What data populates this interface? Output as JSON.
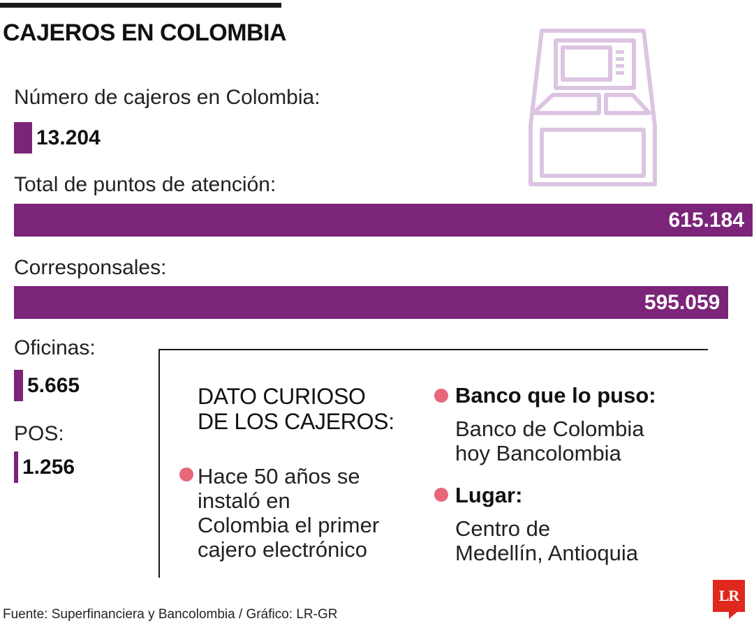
{
  "title": "CAJEROS EN COLOMBIA",
  "colors": {
    "bar": "#7b2479",
    "bullet": "#e8677a",
    "icon": "#dcc4e2",
    "logo": "#e0281e"
  },
  "icon": "atm-machine-icon",
  "chart_data": {
    "type": "bar",
    "orientation": "horizontal",
    "categories": [
      "Número de cajeros en Colombia:",
      "Total de puntos de atención:",
      "Corresponsales:",
      "Oficinas:",
      "POS:"
    ],
    "values": [
      13204,
      615184,
      595059,
      5665,
      1256
    ],
    "value_labels": [
      "13.204",
      "615.184",
      "595.059",
      "5.665",
      "1.256"
    ]
  },
  "curioso": {
    "title_lines": [
      "DATO CURIOSO",
      "DE LOS CAJEROS:"
    ],
    "fact_lines": [
      "Hace 50 años se",
      "instaló en",
      "Colombia el primer",
      "cajero electrónico"
    ],
    "banco_label": "Banco que lo puso:",
    "banco_lines": [
      "Banco de Colombia",
      "hoy Bancolombia"
    ],
    "lugar_label": "Lugar:",
    "lugar_lines": [
      "Centro de",
      "Medellín, Antioquia"
    ]
  },
  "source": "Fuente: Superfinanciera y Bancolombia / Gráfico: LR-GR",
  "logo_text": "LR"
}
